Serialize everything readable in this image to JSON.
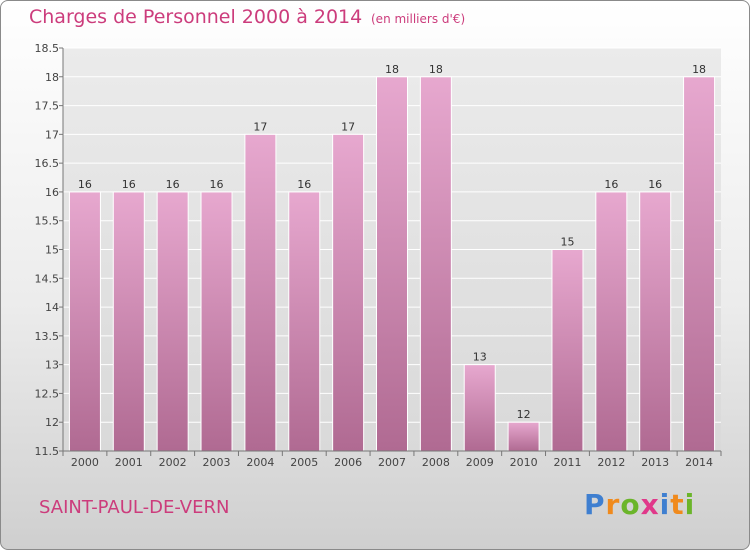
{
  "header": {
    "title": "Charges de Personnel 2000 à 2014",
    "subtitle": "(en milliers d'€)"
  },
  "footer": {
    "location": "SAINT-PAUL-DE-VERN",
    "logo": "Proxiti"
  },
  "colors": {
    "bar_top": "#e7a8cf",
    "bar_bottom": "#b06a92",
    "text_accent": "#cc3c7c",
    "grid": "#ffffff"
  },
  "chart_data": {
    "type": "bar",
    "categories": [
      "2000",
      "2001",
      "2002",
      "2003",
      "2004",
      "2005",
      "2006",
      "2007",
      "2008",
      "2009",
      "2010",
      "2011",
      "2012",
      "2013",
      "2014"
    ],
    "values": [
      16,
      16,
      16,
      16,
      17,
      16,
      17,
      18,
      18,
      13,
      12,
      15,
      16,
      16,
      18
    ],
    "data_labels": [
      "16",
      "16",
      "16",
      "16",
      "17",
      "16",
      "17",
      "18",
      "18",
      "13",
      "12",
      "15",
      "16",
      "16",
      "18"
    ],
    "yticks": [
      "11.5",
      "12",
      "12.5",
      "13",
      "13.5",
      "14",
      "14.5",
      "15",
      "15.5",
      "16",
      "16.5",
      "17",
      "17.5",
      "18",
      "18.5"
    ],
    "ylim": [
      11.5,
      18.5
    ],
    "grid": true,
    "title": "Charges de Personnel 2000 à 2014",
    "xlabel": "",
    "ylabel": ""
  }
}
